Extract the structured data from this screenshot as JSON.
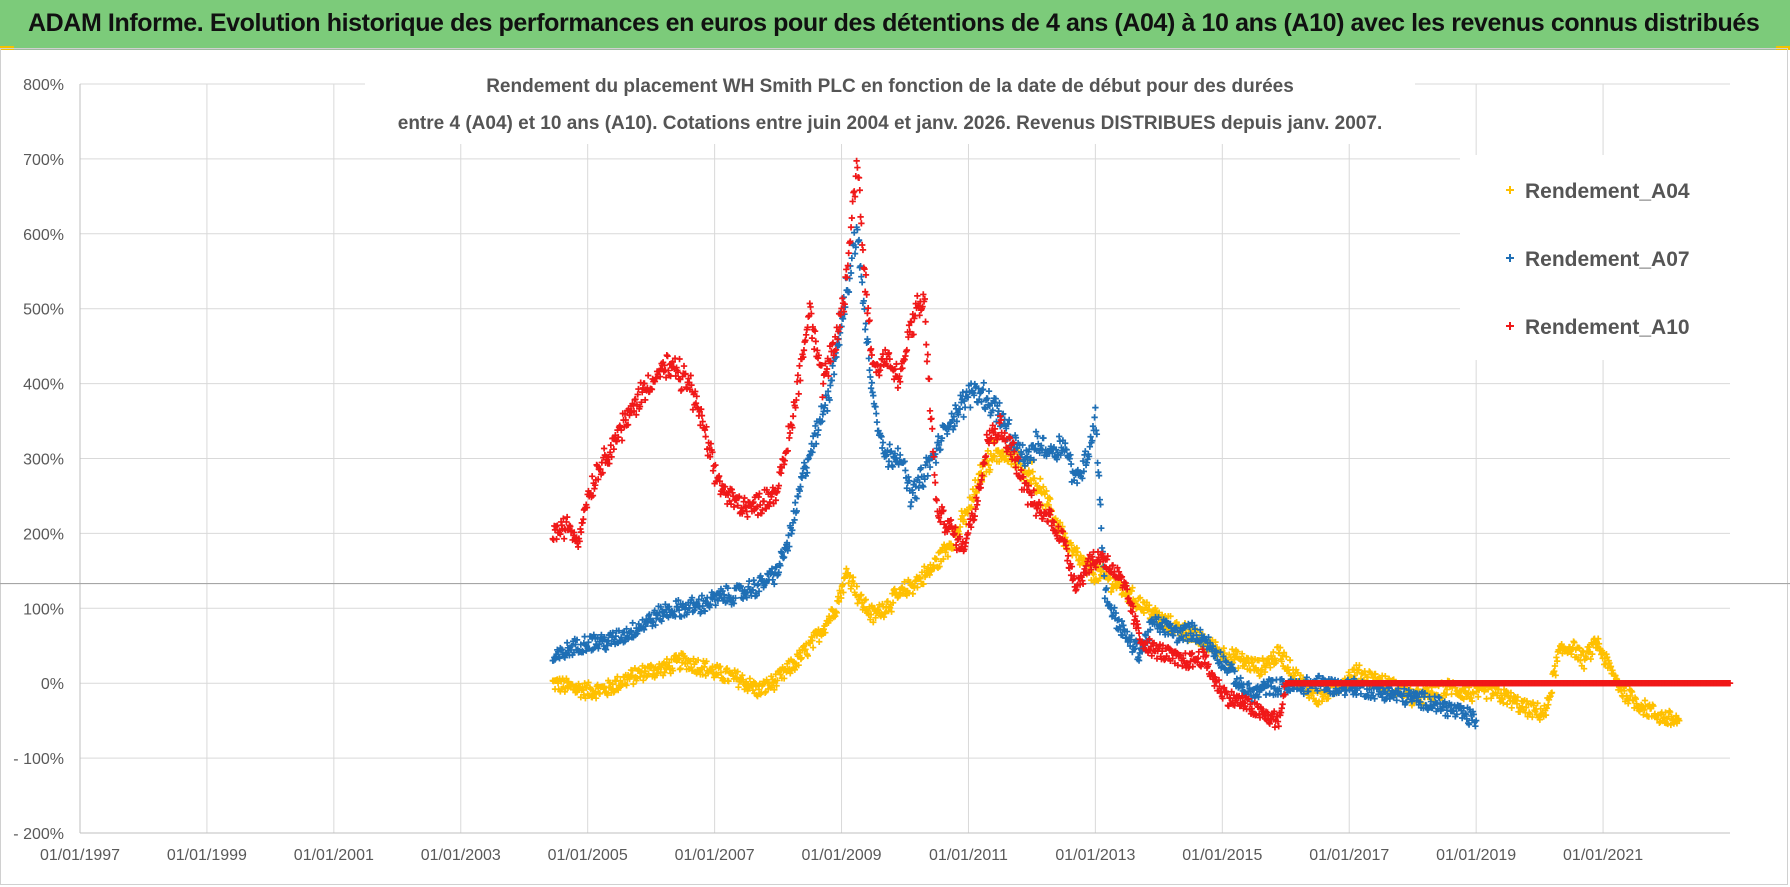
{
  "banner": {
    "title": "ADAM Informe. Evolution historique des performances en euros pour des détentions de 4 ans (A04) à 10 ans (A10) avec les revenus connus distribués",
    "color": "#7ccb7a"
  },
  "chart_data": {
    "type": "scatter",
    "title_line1": "Rendement du placement WH Smith PLC en fonction de la date de début pour des durées",
    "title_line2": "entre 4 (A04) et 10 ans (A10).  Cotations entre juin 2004 et janv. 2026.  Revenus DISTRIBUES depuis janv. 2007.",
    "xlabel": "",
    "ylabel": "",
    "x_ticks": [
      "01/01/1997",
      "01/01/1999",
      "01/01/2001",
      "01/01/2003",
      "01/01/2005",
      "01/01/2007",
      "01/01/2009",
      "01/01/2011",
      "01/01/2013",
      "01/01/2015",
      "01/01/2017",
      "01/01/2019",
      "01/01/2021"
    ],
    "xlim": [
      1997.0,
      2023.0
    ],
    "y_ticks": [
      "800%",
      "700%",
      "600%",
      "500%",
      "400%",
      "300%",
      "200%",
      "100%",
      "0%",
      "- 100%",
      "- 200%"
    ],
    "ylim": [
      -200,
      800
    ],
    "y_reference_line": 133,
    "legend_position": "top-right",
    "series": [
      {
        "name": "Rendement_A04",
        "color": "#ffc000",
        "points": [
          [
            2004.45,
            0
          ],
          [
            2004.7,
            -5
          ],
          [
            2005.0,
            -10
          ],
          [
            2005.3,
            -8
          ],
          [
            2005.6,
            5
          ],
          [
            2005.9,
            15
          ],
          [
            2006.2,
            20
          ],
          [
            2006.5,
            30
          ],
          [
            2006.8,
            22
          ],
          [
            2007.1,
            12
          ],
          [
            2007.4,
            5
          ],
          [
            2007.7,
            -10
          ],
          [
            2008.0,
            5
          ],
          [
            2008.3,
            30
          ],
          [
            2008.6,
            60
          ],
          [
            2008.9,
            100
          ],
          [
            2009.1,
            150
          ],
          [
            2009.3,
            110
          ],
          [
            2009.5,
            90
          ],
          [
            2009.8,
            110
          ],
          [
            2010.1,
            130
          ],
          [
            2010.4,
            150
          ],
          [
            2010.7,
            185
          ],
          [
            2011.0,
            230
          ],
          [
            2011.2,
            280
          ],
          [
            2011.4,
            310
          ],
          [
            2011.7,
            300
          ],
          [
            2012.0,
            280
          ],
          [
            2012.3,
            230
          ],
          [
            2012.6,
            180
          ],
          [
            2012.9,
            150
          ],
          [
            2013.2,
            140
          ],
          [
            2013.5,
            120
          ],
          [
            2013.8,
            100
          ],
          [
            2014.1,
            80
          ],
          [
            2014.4,
            70
          ],
          [
            2014.7,
            55
          ],
          [
            2015.0,
            40
          ],
          [
            2015.3,
            30
          ],
          [
            2015.6,
            20
          ],
          [
            2015.9,
            40
          ],
          [
            2016.2,
            5
          ],
          [
            2016.5,
            -20
          ],
          [
            2016.8,
            -5
          ],
          [
            2017.1,
            15
          ],
          [
            2017.4,
            5
          ],
          [
            2017.7,
            -5
          ],
          [
            2018.0,
            -20
          ],
          [
            2018.3,
            -15
          ],
          [
            2018.6,
            -5
          ],
          [
            2018.9,
            -15
          ],
          [
            2019.2,
            -10
          ],
          [
            2019.5,
            -20
          ],
          [
            2019.8,
            -35
          ],
          [
            2020.1,
            -40
          ],
          [
            2020.3,
            40
          ],
          [
            2020.5,
            50
          ],
          [
            2020.7,
            30
          ],
          [
            2020.9,
            55
          ],
          [
            2021.1,
            20
          ],
          [
            2021.3,
            -10
          ],
          [
            2021.6,
            -30
          ],
          [
            2021.9,
            -45
          ],
          [
            2022.2,
            -50
          ]
        ]
      },
      {
        "name": "Rendement_A07",
        "color": "#1f6fb5",
        "points": [
          [
            2004.45,
            30
          ],
          [
            2004.7,
            45
          ],
          [
            2005.0,
            55
          ],
          [
            2005.3,
            55
          ],
          [
            2005.6,
            65
          ],
          [
            2005.9,
            80
          ],
          [
            2006.2,
            95
          ],
          [
            2006.5,
            100
          ],
          [
            2006.8,
            105
          ],
          [
            2007.1,
            115
          ],
          [
            2007.4,
            120
          ],
          [
            2007.7,
            130
          ],
          [
            2008.0,
            150
          ],
          [
            2008.2,
            200
          ],
          [
            2008.4,
            280
          ],
          [
            2008.6,
            330
          ],
          [
            2008.8,
            390
          ],
          [
            2009.0,
            480
          ],
          [
            2009.15,
            560
          ],
          [
            2009.25,
            610
          ],
          [
            2009.35,
            500
          ],
          [
            2009.5,
            380
          ],
          [
            2009.7,
            300
          ],
          [
            2009.9,
            310
          ],
          [
            2010.1,
            250
          ],
          [
            2010.3,
            280
          ],
          [
            2010.5,
            310
          ],
          [
            2010.7,
            350
          ],
          [
            2010.9,
            370
          ],
          [
            2011.1,
            395
          ],
          [
            2011.3,
            380
          ],
          [
            2011.5,
            360
          ],
          [
            2011.7,
            320
          ],
          [
            2011.9,
            300
          ],
          [
            2012.1,
            320
          ],
          [
            2012.3,
            310
          ],
          [
            2012.5,
            320
          ],
          [
            2012.7,
            270
          ],
          [
            2012.9,
            310
          ],
          [
            2013.0,
            360
          ],
          [
            2013.15,
            120
          ],
          [
            2013.3,
            90
          ],
          [
            2013.5,
            60
          ],
          [
            2013.7,
            40
          ],
          [
            2013.9,
            80
          ],
          [
            2014.1,
            75
          ],
          [
            2014.3,
            65
          ],
          [
            2014.5,
            70
          ],
          [
            2014.7,
            60
          ],
          [
            2014.9,
            40
          ],
          [
            2015.1,
            20
          ],
          [
            2015.3,
            -5
          ],
          [
            2015.5,
            -15
          ],
          [
            2015.7,
            -5
          ],
          [
            2015.9,
            -5
          ],
          [
            2016.2,
            -5
          ],
          [
            2016.5,
            0
          ],
          [
            2016.8,
            -5
          ],
          [
            2017.1,
            -5
          ],
          [
            2017.4,
            -10
          ],
          [
            2017.7,
            -15
          ],
          [
            2018.0,
            -20
          ],
          [
            2018.3,
            -25
          ],
          [
            2018.6,
            -35
          ],
          [
            2018.9,
            -45
          ],
          [
            2019.0,
            -50
          ]
        ]
      },
      {
        "name": "Rendement_A10",
        "color": "#f01818",
        "points": [
          [
            2004.45,
            200
          ],
          [
            2004.7,
            210
          ],
          [
            2004.85,
            190
          ],
          [
            2005.0,
            250
          ],
          [
            2005.2,
            290
          ],
          [
            2005.4,
            320
          ],
          [
            2005.6,
            350
          ],
          [
            2005.8,
            380
          ],
          [
            2006.0,
            405
          ],
          [
            2006.2,
            420
          ],
          [
            2006.4,
            415
          ],
          [
            2006.6,
            400
          ],
          [
            2006.8,
            350
          ],
          [
            2007.0,
            280
          ],
          [
            2007.2,
            250
          ],
          [
            2007.4,
            240
          ],
          [
            2007.6,
            235
          ],
          [
            2007.8,
            245
          ],
          [
            2008.0,
            260
          ],
          [
            2008.2,
            340
          ],
          [
            2008.35,
            420
          ],
          [
            2008.5,
            500
          ],
          [
            2008.7,
            400
          ],
          [
            2008.9,
            450
          ],
          [
            2009.05,
            520
          ],
          [
            2009.15,
            600
          ],
          [
            2009.25,
            700
          ],
          [
            2009.35,
            560
          ],
          [
            2009.5,
            420
          ],
          [
            2009.7,
            440
          ],
          [
            2009.9,
            400
          ],
          [
            2010.1,
            480
          ],
          [
            2010.3,
            510
          ],
          [
            2010.5,
            230
          ],
          [
            2010.7,
            210
          ],
          [
            2010.9,
            180
          ],
          [
            2011.1,
            230
          ],
          [
            2011.3,
            330
          ],
          [
            2011.5,
            340
          ],
          [
            2011.7,
            310
          ],
          [
            2011.9,
            260
          ],
          [
            2012.1,
            230
          ],
          [
            2012.3,
            220
          ],
          [
            2012.5,
            190
          ],
          [
            2012.7,
            130
          ],
          [
            2012.9,
            160
          ],
          [
            2013.1,
            170
          ],
          [
            2013.3,
            150
          ],
          [
            2013.5,
            120
          ],
          [
            2013.7,
            60
          ],
          [
            2013.9,
            45
          ],
          [
            2014.1,
            40
          ],
          [
            2014.3,
            30
          ],
          [
            2014.5,
            30
          ],
          [
            2014.7,
            35
          ],
          [
            2014.9,
            0
          ],
          [
            2015.1,
            -20
          ],
          [
            2015.3,
            -25
          ],
          [
            2015.5,
            -35
          ],
          [
            2015.7,
            -45
          ],
          [
            2015.9,
            -50
          ],
          [
            2016.0,
            0
          ],
          [
            2017.0,
            0
          ],
          [
            2018.0,
            0
          ],
          [
            2019.0,
            0
          ],
          [
            2020.0,
            0
          ],
          [
            2021.0,
            0
          ],
          [
            2022.0,
            0
          ],
          [
            2023.0,
            0
          ]
        ]
      }
    ]
  }
}
